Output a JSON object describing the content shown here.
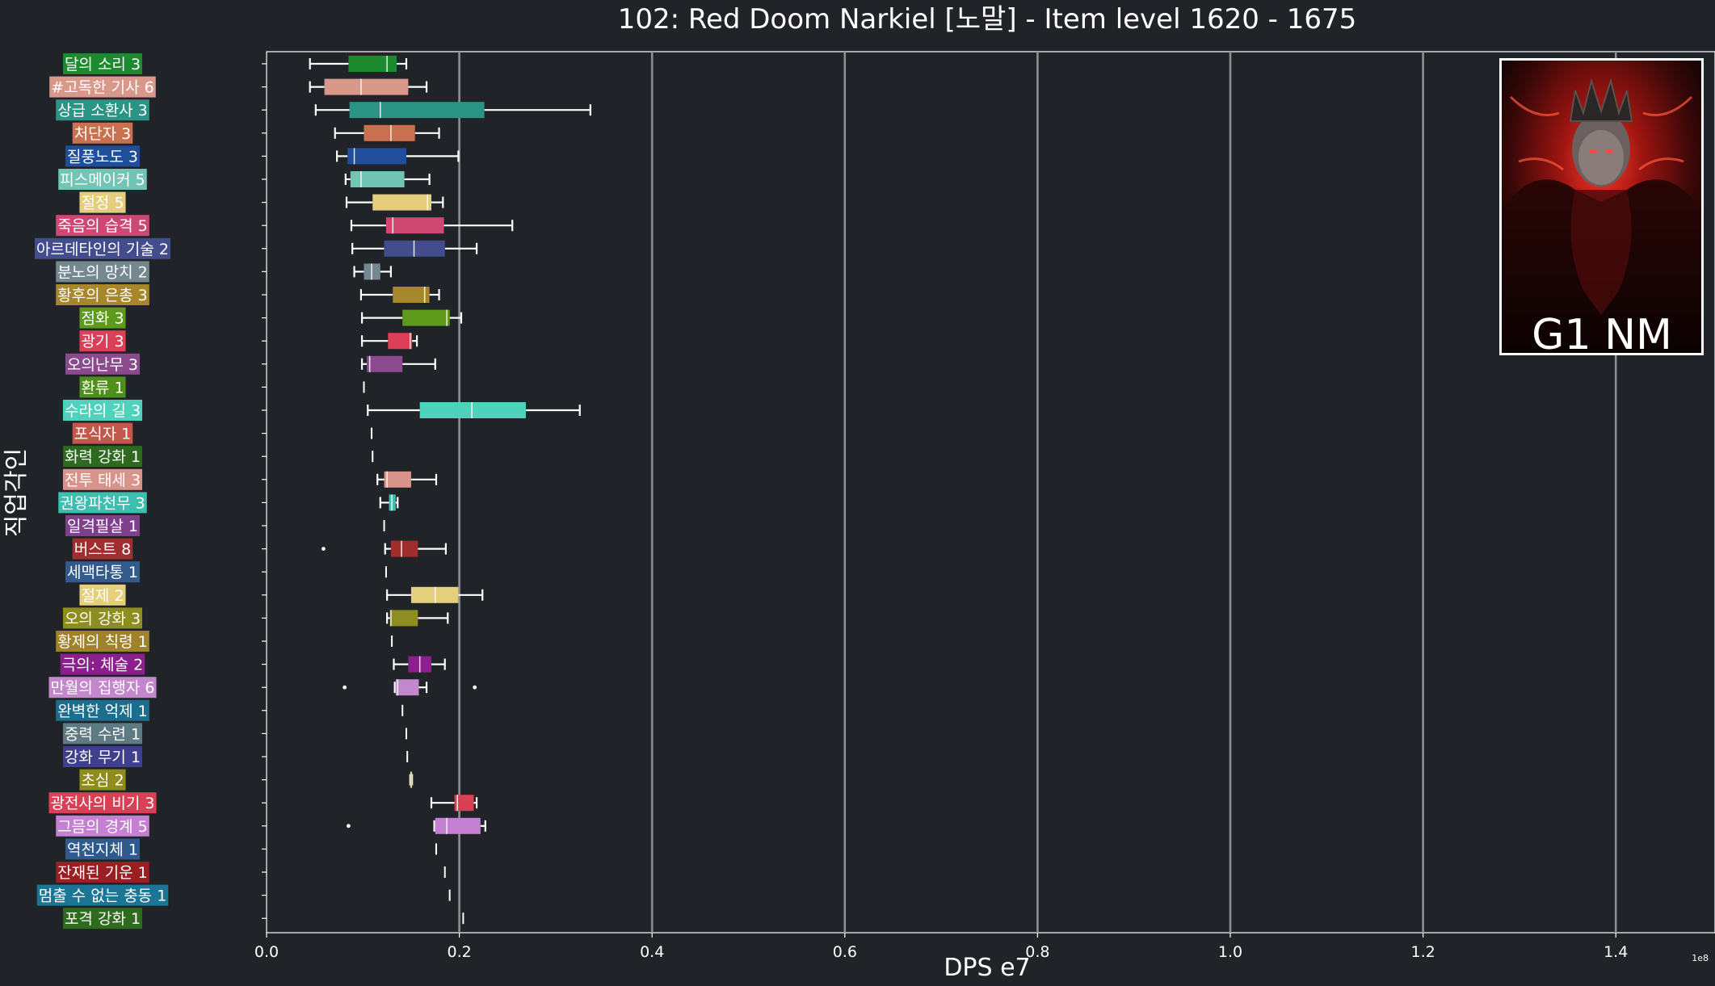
{
  "chart_data": {
    "type": "box",
    "orientation": "horizontal",
    "title": "102: Red Doom Narkiel [노말] - Item level 1620 - 1675",
    "xlabel": "DPS e7",
    "ylabel": "직업각인",
    "x_scale_label": "1e8",
    "xlim": [
      0,
      1.5
    ],
    "xticks": [
      0.0,
      0.2,
      0.4,
      0.6,
      0.8,
      1.0,
      1.2,
      1.4
    ],
    "xtick_labels": [
      "0.0",
      "0.2",
      "0.4",
      "0.6",
      "0.8",
      "1.0",
      "1.2",
      "1.4"
    ],
    "grid": "vertical",
    "badge": {
      "text": "G1 NM",
      "position": "top-right",
      "image": "demon-boss-portrait"
    },
    "categories": [
      {
        "label": "달의 소리 3",
        "color": "#1d8a2f",
        "whislo": 0.045,
        "q1": 0.085,
        "med": 0.125,
        "q3": 0.135,
        "whishi": 0.145,
        "fliers": []
      },
      {
        "label": "#고독한 기사 6",
        "color": "#d8998b",
        "whislo": 0.045,
        "q1": 0.06,
        "med": 0.098,
        "q3": 0.147,
        "whishi": 0.166,
        "fliers": []
      },
      {
        "label": "상급 소환사 3",
        "color": "#2b9485",
        "whislo": 0.051,
        "q1": 0.086,
        "med": 0.118,
        "q3": 0.226,
        "whishi": 0.336,
        "fliers": []
      },
      {
        "label": "처단자 3",
        "color": "#c9704f",
        "whislo": 0.071,
        "q1": 0.101,
        "med": 0.129,
        "q3": 0.154,
        "whishi": 0.179,
        "fliers": []
      },
      {
        "label": "질풍노도 3",
        "color": "#1f4f9a",
        "whislo": 0.073,
        "q1": 0.084,
        "med": 0.091,
        "q3": 0.145,
        "whishi": 0.199,
        "fliers": []
      },
      {
        "label": "피스메이커 5",
        "color": "#72c5b4",
        "whislo": 0.082,
        "q1": 0.087,
        "med": 0.098,
        "q3": 0.143,
        "whishi": 0.169,
        "fliers": []
      },
      {
        "label": "절정 5",
        "color": "#e4ce7d",
        "whislo": 0.083,
        "q1": 0.11,
        "med": 0.167,
        "q3": 0.171,
        "whishi": 0.183,
        "fliers": []
      },
      {
        "label": "죽음의 습격 5",
        "color": "#cf4873",
        "whislo": 0.088,
        "q1": 0.124,
        "med": 0.131,
        "q3": 0.184,
        "whishi": 0.255,
        "fliers": []
      },
      {
        "label": "아르데타인의 기술 2",
        "color": "#434c8c",
        "whislo": 0.089,
        "q1": 0.122,
        "med": 0.153,
        "q3": 0.185,
        "whishi": 0.218,
        "fliers": []
      },
      {
        "label": "분노의 망치 2",
        "color": "#748892",
        "whislo": 0.091,
        "q1": 0.101,
        "med": 0.109,
        "q3": 0.118,
        "whishi": 0.129,
        "fliers": []
      },
      {
        "label": "황후의 은총 3",
        "color": "#a8862a",
        "whislo": 0.098,
        "q1": 0.131,
        "med": 0.164,
        "q3": 0.169,
        "whishi": 0.179,
        "fliers": []
      },
      {
        "label": "점화 3",
        "color": "#5e9b1d",
        "whislo": 0.099,
        "q1": 0.141,
        "med": 0.187,
        "q3": 0.19,
        "whishi": 0.202,
        "fliers": []
      },
      {
        "label": "광기 3",
        "color": "#dc3f57",
        "whislo": 0.099,
        "q1": 0.126,
        "med": 0.149,
        "q3": 0.151,
        "whishi": 0.156,
        "fliers": []
      },
      {
        "label": "오의난무 3",
        "color": "#8b4a8e",
        "whislo": 0.099,
        "q1": 0.104,
        "med": 0.107,
        "q3": 0.141,
        "whishi": 0.175,
        "fliers": []
      },
      {
        "label": "환류 1",
        "color": "#4f8f1d",
        "whislo": 0.101,
        "q1": 0.101,
        "med": 0.101,
        "q3": 0.101,
        "whishi": 0.101,
        "fliers": []
      },
      {
        "label": "수라의 길 3",
        "color": "#4fd2bb",
        "whislo": 0.105,
        "q1": 0.159,
        "med": 0.213,
        "q3": 0.269,
        "whishi": 0.325,
        "fliers": []
      },
      {
        "label": "포식자 1",
        "color": "#c2574b",
        "whislo": 0.109,
        "q1": 0.109,
        "med": 0.109,
        "q3": 0.109,
        "whishi": 0.109,
        "fliers": []
      },
      {
        "label": "화력 강화 1",
        "color": "#2d6a1f",
        "whislo": 0.11,
        "q1": 0.11,
        "med": 0.11,
        "q3": 0.11,
        "whishi": 0.11,
        "fliers": []
      },
      {
        "label": "전투 태세 3",
        "color": "#d8948b",
        "whislo": 0.115,
        "q1": 0.122,
        "med": 0.125,
        "q3": 0.15,
        "whishi": 0.176,
        "fliers": []
      },
      {
        "label": "권왕파천무 3",
        "color": "#3cbfb0",
        "whislo": 0.118,
        "q1": 0.127,
        "med": 0.13,
        "q3": 0.134,
        "whishi": 0.136,
        "fliers": []
      },
      {
        "label": "일격필살 1",
        "color": "#7e3f8d",
        "whislo": 0.122,
        "q1": 0.122,
        "med": 0.122,
        "q3": 0.122,
        "whishi": 0.122,
        "fliers": []
      },
      {
        "label": "버스트 8",
        "color": "#a12e2f",
        "whislo": 0.123,
        "q1": 0.129,
        "med": 0.14,
        "q3": 0.157,
        "whishi": 0.186,
        "fliers": [
          0.059
        ]
      },
      {
        "label": "세맥타통 1",
        "color": "#325b8c",
        "whislo": 0.124,
        "q1": 0.124,
        "med": 0.124,
        "q3": 0.124,
        "whishi": 0.124,
        "fliers": []
      },
      {
        "label": "절제 2",
        "color": "#e4cf7a",
        "whislo": 0.125,
        "q1": 0.15,
        "med": 0.175,
        "q3": 0.199,
        "whishi": 0.224,
        "fliers": []
      },
      {
        "label": "오의 강화 3",
        "color": "#8d8e1f",
        "whislo": 0.125,
        "q1": 0.128,
        "med": 0.129,
        "q3": 0.157,
        "whishi": 0.188,
        "fliers": []
      },
      {
        "label": "황제의 칙령 1",
        "color": "#a0822a",
        "whislo": 0.13,
        "q1": 0.13,
        "med": 0.13,
        "q3": 0.13,
        "whishi": 0.13,
        "fliers": []
      },
      {
        "label": "극의: 체술 2",
        "color": "#8a1f8d",
        "whislo": 0.132,
        "q1": 0.147,
        "med": 0.159,
        "q3": 0.171,
        "whishi": 0.185,
        "fliers": []
      },
      {
        "label": "만월의 집행자 6",
        "color": "#c387cc",
        "whislo": 0.133,
        "q1": 0.134,
        "med": 0.136,
        "q3": 0.158,
        "whishi": 0.166,
        "fliers": [
          0.081,
          0.216
        ]
      },
      {
        "label": "완벽한 억제 1",
        "color": "#1b6e8d",
        "whislo": 0.141,
        "q1": 0.141,
        "med": 0.141,
        "q3": 0.141,
        "whishi": 0.141,
        "fliers": []
      },
      {
        "label": "중력 수련 1",
        "color": "#5e7a82",
        "whislo": 0.145,
        "q1": 0.145,
        "med": 0.145,
        "q3": 0.145,
        "whishi": 0.145,
        "fliers": []
      },
      {
        "label": "강화 무기 1",
        "color": "#3f3f8d",
        "whislo": 0.146,
        "q1": 0.146,
        "med": 0.146,
        "q3": 0.146,
        "whishi": 0.146,
        "fliers": []
      },
      {
        "label": "초심 2",
        "color": "#8f8c1b",
        "whislo": 0.149,
        "q1": 0.149,
        "med": 0.15,
        "q3": 0.151,
        "whishi": 0.151,
        "fliers": []
      },
      {
        "label": "광전사의 비기 3",
        "color": "#d93f55",
        "whislo": 0.171,
        "q1": 0.195,
        "med": 0.198,
        "q3": 0.215,
        "whishi": 0.218,
        "fliers": []
      },
      {
        "label": "그믐의 경계 5",
        "color": "#c57fd3",
        "whislo": 0.174,
        "q1": 0.175,
        "med": 0.187,
        "q3": 0.222,
        "whishi": 0.227,
        "fliers": [
          0.085
        ]
      },
      {
        "label": "역천지체 1",
        "color": "#2e5a8d",
        "whislo": 0.176,
        "q1": 0.176,
        "med": 0.176,
        "q3": 0.176,
        "whishi": 0.176,
        "fliers": []
      },
      {
        "label": "잔재된 기운 1",
        "color": "#9a1f22",
        "whislo": 0.185,
        "q1": 0.185,
        "med": 0.185,
        "q3": 0.185,
        "whishi": 0.185,
        "fliers": []
      },
      {
        "label": "멈출 수 없는 충동 1",
        "color": "#1b7594",
        "whislo": 0.19,
        "q1": 0.19,
        "med": 0.19,
        "q3": 0.19,
        "whishi": 0.19,
        "fliers": []
      },
      {
        "label": "포격 강화 1",
        "color": "#2f6b1f",
        "whislo": 0.204,
        "q1": 0.204,
        "med": 0.204,
        "q3": 0.204,
        "whishi": 0.204,
        "fliers": []
      }
    ]
  }
}
